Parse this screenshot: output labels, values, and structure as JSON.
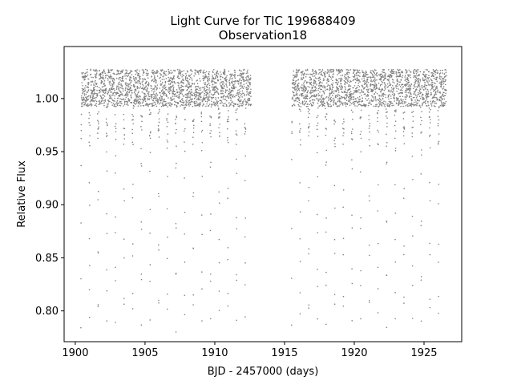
{
  "chart_data": {
    "type": "scatter",
    "title": "Light Curve for TIC 199688409",
    "subtitle": "Observation18",
    "xlabel": "BJD - 2457000 (days)",
    "ylabel": "Relative Flux",
    "xlim": [
      1899.2,
      1927.7
    ],
    "ylim": [
      0.771,
      1.049
    ],
    "xticks": [
      1900,
      1905,
      1910,
      1915,
      1920,
      1925
    ],
    "yticks": [
      0.8,
      0.85,
      0.9,
      0.95,
      1.0
    ],
    "xtick_labels": [
      "1900",
      "1905",
      "1910",
      "1915",
      "1920",
      "1925"
    ],
    "ytick_labels": [
      "0.80",
      "0.85",
      "0.90",
      "0.95",
      "1.00"
    ],
    "grid": false,
    "marker_color": "#808080",
    "series": [
      {
        "segments": [
          {
            "x_start": 1900.4,
            "x_end": 1912.6
          },
          {
            "x_start": 1915.5,
            "x_end": 1926.6
          }
        ],
        "baseline_flux": 1.01,
        "eclipse_period_days": 0.62,
        "eclipse_min_flux": 0.785,
        "max_flux": 1.03
      }
    ]
  }
}
